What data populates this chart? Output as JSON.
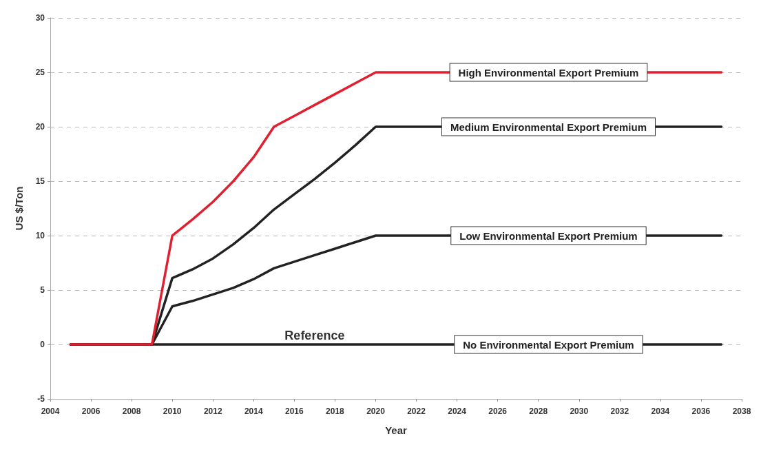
{
  "chart_data": {
    "type": "line",
    "xlabel": "Year",
    "ylabel": "US $/Ton",
    "xlim": [
      2004,
      2038
    ],
    "xticks": [
      2004,
      2006,
      2008,
      2010,
      2012,
      2014,
      2016,
      2018,
      2020,
      2022,
      2024,
      2026,
      2028,
      2030,
      2032,
      2034,
      2036,
      2038
    ],
    "ylim": [
      -5,
      30
    ],
    "yticks": [
      -5,
      0,
      5,
      10,
      15,
      20,
      25,
      30
    ],
    "grid": "y",
    "line_style": "solid",
    "marker": "none",
    "series": [
      {
        "name": "High Environmental Export Premium",
        "color": "#e0202e",
        "x": [
          2005,
          2009,
          2010,
          2011,
          2012,
          2013,
          2014,
          2015,
          2016,
          2017,
          2018,
          2019,
          2020,
          2037
        ],
        "values": [
          0,
          0,
          10,
          11.5,
          13.1,
          15,
          17.2,
          20,
          21,
          22,
          23,
          24,
          25,
          25
        ]
      },
      {
        "name": "Medium Environmental Export Premium",
        "color": "#222222",
        "x": [
          2005,
          2009,
          2010,
          2011,
          2012,
          2013,
          2014,
          2015,
          2016,
          2017,
          2018,
          2019,
          2020,
          2037
        ],
        "values": [
          0,
          0,
          6.1,
          6.9,
          7.9,
          9.2,
          10.7,
          12.4,
          13.8,
          15.2,
          16.7,
          18.3,
          20,
          20
        ]
      },
      {
        "name": "Low Environmental Export Premium",
        "color": "#222222",
        "x": [
          2005,
          2009,
          2010,
          2011,
          2012,
          2013,
          2014,
          2015,
          2016,
          2017,
          2018,
          2019,
          2020,
          2037
        ],
        "values": [
          0,
          0,
          3.5,
          4,
          4.6,
          5.2,
          6,
          7,
          7.6,
          8.2,
          8.8,
          9.4,
          10,
          10
        ]
      },
      {
        "name": "No Environmental Export Premium",
        "color": "#222222",
        "x": [
          2005,
          2009,
          2020,
          2037
        ],
        "values": [
          0,
          0,
          0,
          0
        ]
      }
    ],
    "annotations": [
      {
        "text": "Reference",
        "x": 2017,
        "y": 0
      }
    ]
  }
}
